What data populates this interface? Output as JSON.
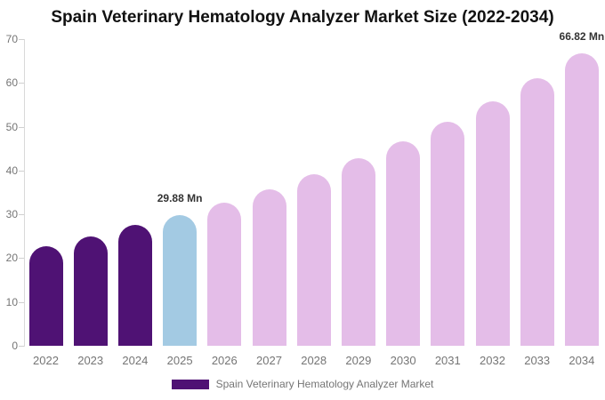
{
  "title": "Spain Veterinary Hematology Analyzer Market Size (2022-2034)",
  "legend": {
    "label": "Spain Veterinary Hematology Analyzer Market",
    "swatch_color": "#4F1274"
  },
  "chart_data": {
    "type": "bar",
    "title": "Spain Veterinary Hematology Analyzer Market Size (2022-2034)",
    "unit": "Mn",
    "categories": [
      "2022",
      "2023",
      "2024",
      "2025",
      "2026",
      "2027",
      "2028",
      "2029",
      "2030",
      "2031",
      "2032",
      "2033",
      "2034"
    ],
    "values": [
      22.7,
      25.0,
      27.5,
      29.88,
      32.67,
      35.73,
      39.07,
      42.72,
      46.72,
      51.09,
      55.86,
      61.09,
      66.82
    ],
    "point_colors": [
      "#4F1274",
      "#4F1274",
      "#4F1274",
      "#A3CAE3",
      "#E4BDE8",
      "#E4BDE8",
      "#E4BDE8",
      "#E4BDE8",
      "#E4BDE8",
      "#E4BDE8",
      "#E4BDE8",
      "#E4BDE8",
      "#E4BDE8"
    ],
    "data_labels": {
      "2025": "29.88 Mn",
      "2034": "66.82 Mn"
    },
    "xlabel": "",
    "ylabel": "",
    "ylim": [
      0,
      70
    ],
    "yticks": [
      0,
      10,
      20,
      30,
      40,
      50,
      60,
      70
    ],
    "grid": false,
    "legend_position": "bottom",
    "colors": {
      "historical": "#4F1274",
      "base_year": "#A3CAE3",
      "forecast": "#E4BDE8",
      "axis_line": "#D9D9D9",
      "tick": "#D0D0D0",
      "axis_label": "#757575",
      "value_label": "#333333",
      "title": "#111111"
    }
  }
}
